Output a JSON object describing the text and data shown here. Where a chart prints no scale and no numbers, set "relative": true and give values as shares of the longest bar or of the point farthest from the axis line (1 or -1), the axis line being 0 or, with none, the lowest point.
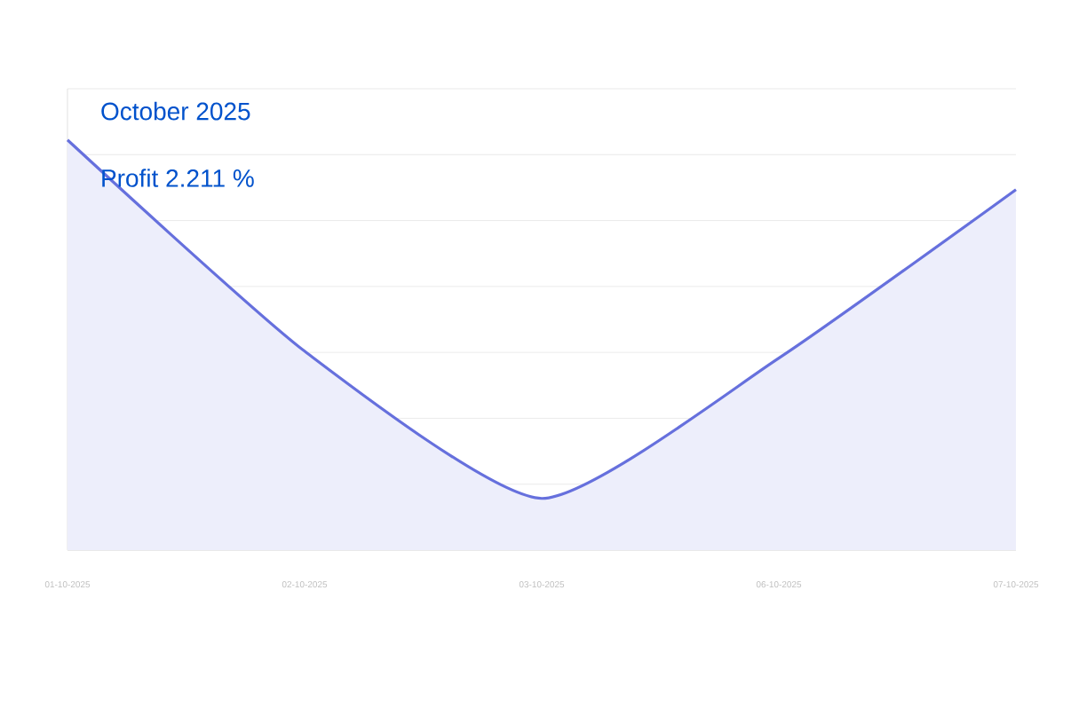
{
  "chart_data": {
    "type": "area",
    "title": "October 2025",
    "subtitle": "Profit 2.211 %",
    "categories": [
      "01-10-2025",
      "02-10-2025",
      "03-10-2025",
      "06-10-2025",
      "07-10-2025"
    ],
    "relative": true,
    "series": [
      {
        "color": "#6670dd",
        "values": [
          1,
          0.485,
          0.126,
          0.468,
          0.879
        ]
      }
    ],
    "grid": "y",
    "marker": "none",
    "line_style": "solid"
  }
}
